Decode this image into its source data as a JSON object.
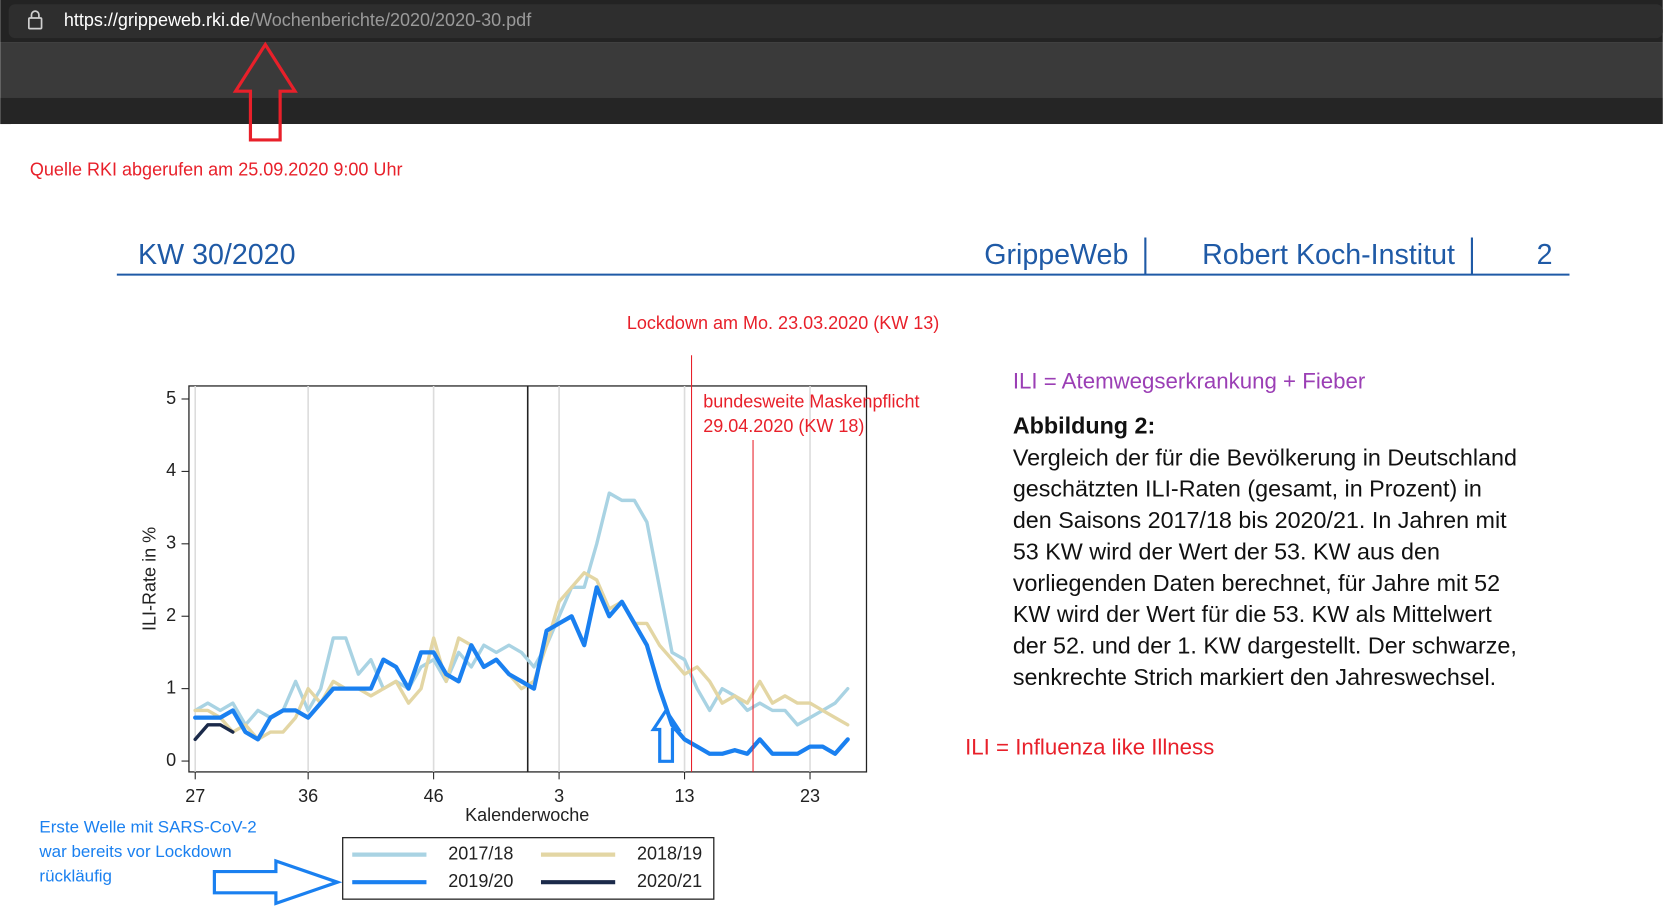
{
  "browser": {
    "url_host": "https://grippeweb.rki.de",
    "url_path": "/Wochenberichte/2020/2020-30.pdf"
  },
  "source_note": "Quelle RKI abgerufen am 25.09.2020 9:00 Uhr",
  "header": {
    "left": "KW 30/2020",
    "brand": "GrippeWeb",
    "institute": "Robert Koch-Institut",
    "page": "2"
  },
  "annotations": {
    "lockdown": "Lockdown am Mo. 23.03.2020 (KW 13)",
    "mask": [
      "bundesweite Maskenpflicht",
      "29.04.2020 (KW 18)"
    ],
    "ili_def": "ILI = Atemwegserkrankung + Fieber",
    "ili_name": "ILI = Influenza like Illness",
    "first_wave": [
      "Erste Welle mit SARS-CoV-2",
      "war bereits vor Lockdown",
      "rückläufig"
    ]
  },
  "caption": {
    "title": "Abbildung 2:",
    "lines": [
      "Vergleich der für die Bevölkerung in Deutschland",
      "geschätzten ILI-Raten (gesamt, in Prozent) in",
      "den Saisons 2017/18 bis 2020/21. In Jahren mit",
      "53 KW wird der Wert der 53. KW aus den",
      "vorliegenden Daten berechnet, für Jahre mit 52",
      "KW wird der Wert für die 53. KW als Mittelwert",
      "der 52. und der 1. KW dargestellt. Der schwarze,",
      "senkrechte Strich markiert den Jahreswechsel."
    ]
  },
  "chart_data": {
    "type": "line",
    "x_label": "Kalenderwoche",
    "y_label": "ILI-Rate in %",
    "categories": [
      "27",
      null,
      null,
      null,
      null,
      null,
      null,
      null,
      null,
      "36",
      null,
      null,
      null,
      null,
      null,
      null,
      null,
      null,
      null,
      "46",
      null,
      null,
      null,
      null,
      null,
      null,
      null,
      null,
      null,
      "3",
      null,
      null,
      null,
      null,
      null,
      null,
      null,
      null,
      null,
      "13",
      null,
      null,
      null,
      null,
      null,
      null,
      null,
      null,
      null,
      "23",
      null,
      null,
      null,
      null
    ],
    "ylim": [
      -0.15,
      5.18
    ],
    "yticks": [
      0,
      1,
      2,
      3,
      4,
      5
    ],
    "grid": true,
    "legend": "bottom",
    "series": [
      {
        "name": "2017/18",
        "color": "#a9d3e3",
        "values": [
          0.7,
          0.8,
          0.7,
          0.8,
          0.5,
          0.7,
          0.6,
          0.7,
          1.1,
          0.7,
          1.0,
          1.7,
          1.7,
          1.2,
          1.4,
          1.0,
          1.1,
          1.0,
          1.3,
          1.4,
          1.1,
          1.5,
          1.3,
          1.6,
          1.5,
          1.6,
          1.5,
          1.3,
          1.6,
          2.0,
          2.4,
          2.4,
          3.0,
          3.7,
          3.6,
          3.6,
          3.3,
          2.4,
          1.5,
          1.4,
          1.0,
          0.7,
          1.0,
          0.9,
          0.7,
          0.8,
          0.7,
          0.7,
          0.5,
          0.6,
          0.7,
          0.8,
          1.0,
          null
        ]
      },
      {
        "name": "2018/19",
        "color": "#e3d6a4",
        "values": [
          0.7,
          0.7,
          0.6,
          0.4,
          0.5,
          0.3,
          0.4,
          0.4,
          0.6,
          1.0,
          0.8,
          1.1,
          1.0,
          1.0,
          0.9,
          1.0,
          1.1,
          0.8,
          1.0,
          1.7,
          1.1,
          1.7,
          1.6,
          1.3,
          1.4,
          1.2,
          1.0,
          1.1,
          1.6,
          2.2,
          2.4,
          2.6,
          2.5,
          2.1,
          2.2,
          1.9,
          1.9,
          1.6,
          1.4,
          1.2,
          1.3,
          1.1,
          0.8,
          0.9,
          0.8,
          1.1,
          0.8,
          0.9,
          0.8,
          0.8,
          0.7,
          0.6,
          0.5,
          null
        ]
      },
      {
        "name": "2019/20",
        "color": "#1a80f0",
        "values": [
          0.6,
          0.6,
          0.6,
          0.7,
          0.4,
          0.3,
          0.6,
          0.7,
          0.7,
          0.6,
          0.8,
          1.0,
          1.0,
          1.0,
          1.0,
          1.4,
          1.3,
          1.0,
          1.5,
          1.5,
          1.2,
          1.1,
          1.6,
          1.3,
          1.4,
          1.2,
          1.1,
          1.0,
          1.8,
          1.9,
          2.0,
          1.6,
          2.4,
          2.0,
          2.2,
          1.9,
          1.6,
          1.0,
          0.5,
          0.3,
          0.2,
          0.1,
          0.1,
          0.15,
          0.1,
          0.3,
          0.1,
          0.1,
          0.1,
          0.2,
          0.2,
          0.1,
          0.3,
          null
        ]
      },
      {
        "name": "2020/21",
        "color": "#1b2a4a",
        "values": [
          0.3,
          0.5,
          0.5,
          0.4,
          null,
          null,
          null,
          null,
          null,
          null,
          null,
          null,
          null,
          null,
          null,
          null,
          null,
          null,
          null,
          null,
          null,
          null,
          null,
          null,
          null,
          null,
          null,
          null,
          null,
          null,
          null,
          null,
          null,
          null,
          null,
          null,
          null,
          null,
          null,
          null,
          null,
          null,
          null,
          null,
          null,
          null,
          null,
          null,
          null,
          null,
          null,
          null,
          null,
          null
        ]
      }
    ]
  }
}
